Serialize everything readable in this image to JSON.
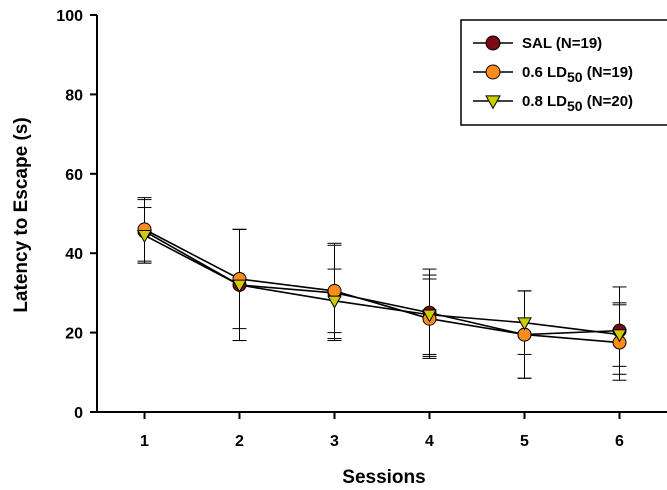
{
  "chart_data": {
    "type": "line",
    "title": "",
    "xlabel": "Sessions",
    "ylabel": "Latency to Escape (s)",
    "ylim": [
      0,
      100
    ],
    "xlim": [
      0.5,
      6.5
    ],
    "x": [
      1,
      2,
      3,
      4,
      5,
      6
    ],
    "yticks": [
      0,
      20,
      40,
      60,
      80,
      100
    ],
    "xticks": [
      1,
      2,
      3,
      4,
      5,
      6
    ],
    "grid": false,
    "legend_position": "top-right",
    "series": [
      {
        "name": "SAL (N=19)",
        "label_parts": {
          "text": "SAL (N=19)",
          "sub": "",
          "suffix": ""
        },
        "values": [
          45.5,
          32.0,
          30.0,
          25.0,
          19.5,
          20.5
        ],
        "errors": [
          8.0,
          14.0,
          12.0,
          11.0,
          11.0,
          11.0
        ],
        "marker": "circle",
        "fill": "#7a0a14",
        "stroke": "#000000"
      },
      {
        "name": "0.6 LD50 (N=19)",
        "label_parts": {
          "text": "0.6 LD",
          "sub": "50",
          "suffix": " (N=19)"
        },
        "values": [
          46.0,
          33.5,
          30.5,
          23.5,
          19.5,
          17.5
        ],
        "errors": [
          8.0,
          12.5,
          12.0,
          10.0,
          11.0,
          9.5
        ],
        "marker": "circle",
        "fill": "#ff8c1a",
        "stroke": "#000000"
      },
      {
        "name": "0.8 LD50 (N=20)",
        "label_parts": {
          "text": "0.8 LD",
          "sub": "50",
          "suffix": " (N=20)"
        },
        "values": [
          44.5,
          32.0,
          28.0,
          24.5,
          22.5,
          19.5
        ],
        "errors": [
          7.0,
          14.0,
          8.0,
          10.0,
          8.0,
          8.0
        ],
        "marker": "triangle-down",
        "fill": "#cccc00",
        "stroke": "#000000"
      }
    ]
  }
}
